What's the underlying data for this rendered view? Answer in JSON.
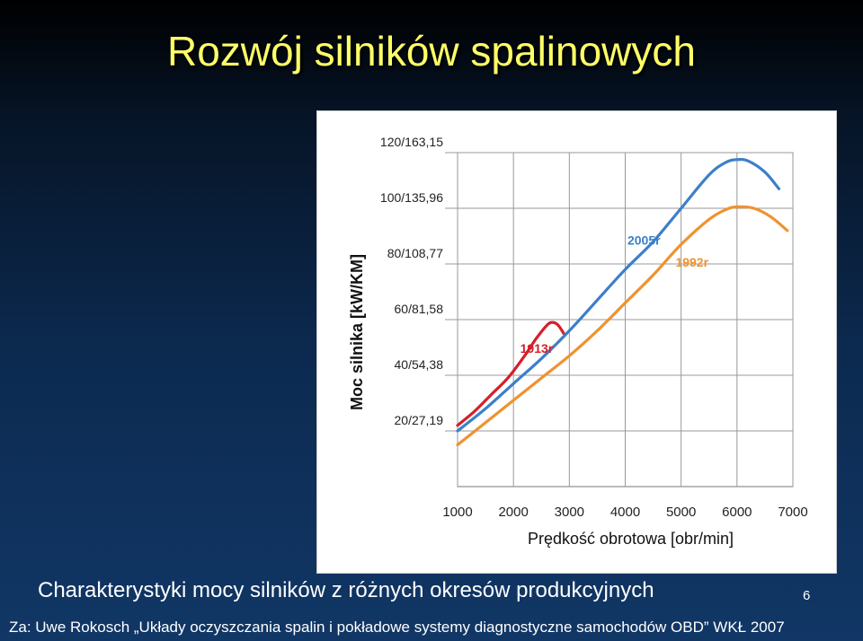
{
  "slide": {
    "title": "Rozwój silników spalinowych",
    "caption": "Charakterystyki mocy silników z różnych okresów produkcyjnych",
    "page_number": "6",
    "source": "Za: Uwe Rokosch „Układy oczyszczania spalin i pokładowe systemy diagnostyczne samochodów OBD” WKŁ 2007"
  },
  "chart_data": {
    "type": "line",
    "title": "",
    "xlabel": "Prędkość obrotowa [obr/min]",
    "ylabel": "Moc silnika [kW/KM]",
    "xlim": [
      1000,
      7000
    ],
    "ylim": [
      0,
      120
    ],
    "x_ticks": [
      1000,
      2000,
      3000,
      4000,
      5000,
      6000,
      7000
    ],
    "x_tick_labels": [
      "1000",
      "2000",
      "3000",
      "4000",
      "5000",
      "6000",
      "7000"
    ],
    "y_ticks": [
      20,
      40,
      60,
      80,
      100,
      120
    ],
    "y_tick_labels": [
      "20/27,19",
      "40/54,38",
      "60/81,58",
      "80/108,77",
      "100/135,96",
      "120/163,15"
    ],
    "grid": true,
    "colors": {
      "1913r": "#d4202a",
      "1992r": "#f0922e",
      "2005r": "#3c7fc8"
    },
    "series": [
      {
        "name": "1913r",
        "x": [
          1000,
          1300,
          1600,
          1900,
          2200,
          2400,
          2600,
          2700,
          2800,
          2900
        ],
        "y": [
          22,
          27,
          33,
          39,
          47,
          53,
          58,
          59,
          58,
          55
        ]
      },
      {
        "name": "2005r",
        "x": [
          1000,
          1500,
          2000,
          2500,
          3000,
          3500,
          4000,
          4500,
          5000,
          5500,
          5800,
          6000,
          6200,
          6500,
          6750
        ],
        "y": [
          20,
          28,
          37,
          46,
          56,
          67,
          78,
          88,
          100,
          112,
          116.5,
          117.5,
          117,
          113,
          107
        ]
      },
      {
        "name": "1992r",
        "x": [
          1000,
          1500,
          2000,
          2500,
          3000,
          3500,
          4000,
          4500,
          5000,
          5500,
          5800,
          6000,
          6300,
          6600,
          6900
        ],
        "y": [
          15,
          23,
          31,
          39,
          47,
          56,
          66,
          76,
          87,
          96,
          99.5,
          100.5,
          100,
          97,
          92
        ]
      }
    ],
    "annotations": [
      {
        "text": "1913r",
        "series": "1913r",
        "x": 2120,
        "y": 48
      },
      {
        "text": "2005r",
        "series": "2005r",
        "x": 4040,
        "y": 87
      },
      {
        "text": "1992r",
        "series": "1992r",
        "x": 4900,
        "y": 79
      }
    ]
  }
}
